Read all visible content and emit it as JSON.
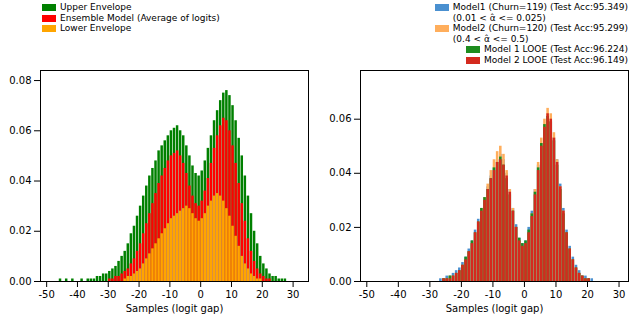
{
  "chart_data": [
    {
      "type": "histogram",
      "x_label": "Samples (logit gap)",
      "legend": "upper left",
      "xlim": [
        -52,
        35
      ],
      "ylim": [
        0,
        0.084
      ],
      "xticks": [
        -50,
        -40,
        -30,
        -20,
        -10,
        0,
        10,
        20,
        30
      ],
      "yticks": [
        {
          "value": 0,
          "label": "0.00"
        },
        {
          "value": 0.02,
          "label": "0.02"
        },
        {
          "value": 0.04,
          "label": "0.04"
        },
        {
          "value": 0.06,
          "label": "0.06"
        },
        {
          "value": 0.08,
          "label": "0.08"
        }
      ],
      "bins": [
        -46,
        -45,
        -44,
        -43,
        -42,
        -41,
        -40,
        -39,
        -38,
        -37,
        -36,
        -35,
        -34,
        -33,
        -32,
        -31,
        -30,
        -29,
        -28,
        -27,
        -26,
        -25,
        -24,
        -23,
        -22,
        -21,
        -20,
        -19,
        -18,
        -17,
        -16,
        -15,
        -14,
        -13,
        -12,
        -11,
        -10,
        -9,
        -8,
        -7,
        -6,
        -5,
        -4,
        -3,
        -2,
        -1,
        0,
        1,
        2,
        3,
        4,
        5,
        6,
        7,
        8,
        9,
        10,
        11,
        12,
        13,
        14,
        15,
        16,
        17,
        18,
        19,
        20,
        21,
        22,
        23,
        24,
        25,
        26,
        27,
        28,
        29,
        30
      ],
      "series": [
        {
          "name": "Upper Envelope",
          "color": "#008000",
          "values": [
            0.001,
            0,
            0.001,
            0,
            0.001,
            0,
            0,
            0.001,
            0,
            0.001,
            0.001,
            0.001,
            0.002,
            0.002,
            0.003,
            0.003,
            0.004,
            0.005,
            0.006,
            0.008,
            0.01,
            0.012,
            0.015,
            0.019,
            0.022,
            0.026,
            0.03,
            0.034,
            0.038,
            0.042,
            0.045,
            0.048,
            0.052,
            0.054,
            0.056,
            0.058,
            0.06,
            0.061,
            0.062,
            0.06,
            0.058,
            0.054,
            0.05,
            0.046,
            0.043,
            0.042,
            0.044,
            0.048,
            0.053,
            0.058,
            0.064,
            0.068,
            0.072,
            0.075,
            0.076,
            0.074,
            0.07,
            0.064,
            0.057,
            0.05,
            0.042,
            0.034,
            0.027,
            0.02,
            0.015,
            0.01,
            0.007,
            0.005,
            0.003,
            0.002,
            0.002,
            0.001,
            0.001,
            0.001,
            0,
            0
          ]
        },
        {
          "name": "Ensemble Model (Average of logits)",
          "color": "#ff0000",
          "values": [
            0,
            0,
            0,
            0,
            0,
            0,
            0,
            0,
            0,
            0,
            0,
            0,
            0,
            0,
            0,
            0,
            0.001,
            0.001,
            0.002,
            0.002,
            0.003,
            0.004,
            0.005,
            0.007,
            0.009,
            0.012,
            0.015,
            0.019,
            0.023,
            0.027,
            0.031,
            0.035,
            0.039,
            0.042,
            0.045,
            0.048,
            0.05,
            0.051,
            0.052,
            0.05,
            0.047,
            0.043,
            0.038,
            0.034,
            0.031,
            0.03,
            0.032,
            0.036,
            0.041,
            0.047,
            0.053,
            0.058,
            0.062,
            0.065,
            0.064,
            0.06,
            0.054,
            0.047,
            0.039,
            0.031,
            0.024,
            0.017,
            0.012,
            0.008,
            0.005,
            0.003,
            0.002,
            0.001,
            0.001,
            0,
            0,
            0,
            0,
            0,
            0,
            0
          ]
        },
        {
          "name": "Lower Envelope",
          "color": "#ffa500",
          "values": [
            0,
            0,
            0,
            0,
            0,
            0,
            0,
            0,
            0,
            0,
            0,
            0,
            0,
            0,
            0,
            0,
            0,
            0,
            0,
            0,
            0,
            0.001,
            0.002,
            0.002,
            0.003,
            0.004,
            0.005,
            0.007,
            0.009,
            0.011,
            0.013,
            0.015,
            0.017,
            0.019,
            0.021,
            0.023,
            0.025,
            0.026,
            0.027,
            0.028,
            0.029,
            0.03,
            0.029,
            0.027,
            0.025,
            0.024,
            0.025,
            0.027,
            0.03,
            0.032,
            0.034,
            0.035,
            0.034,
            0.032,
            0.029,
            0.026,
            0.022,
            0.018,
            0.014,
            0.01,
            0.007,
            0.005,
            0.003,
            0.002,
            0.001,
            0.001,
            0,
            0,
            0,
            0,
            0,
            0,
            0,
            0,
            0,
            0
          ]
        }
      ]
    },
    {
      "type": "histogram",
      "x_label": "Samples (logit gap)",
      "legend": "upper right",
      "xlim": [
        -52,
        33
      ],
      "ylim": [
        0,
        0.078
      ],
      "xticks": [
        -50,
        -40,
        -30,
        -20,
        -10,
        0,
        10,
        20,
        30
      ],
      "yticks": [
        {
          "value": 0,
          "label": "0.00"
        },
        {
          "value": 0.02,
          "label": "0.02"
        },
        {
          "value": 0.04,
          "label": "0.04"
        },
        {
          "value": 0.06,
          "label": "0.06"
        }
      ],
      "bins": [
        -30,
        -29,
        -28,
        -27,
        -26,
        -25,
        -24,
        -23,
        -22,
        -21,
        -20,
        -19,
        -18,
        -17,
        -16,
        -15,
        -14,
        -13,
        -12,
        -11,
        -10,
        -9,
        -8,
        -7,
        -6,
        -5,
        -4,
        -3,
        -2,
        -1,
        0,
        1,
        2,
        3,
        4,
        5,
        6,
        7,
        8,
        9,
        10,
        11,
        12,
        13,
        14,
        15,
        16,
        17,
        18,
        19,
        20,
        21,
        22,
        23,
        24,
        25
      ],
      "series": [
        {
          "name": "Model1 (Churn=119) (Test Acc:95.349)\n(0.01 < α̂ <= 0.025)",
          "color": "#4a90d0",
          "values": [
            0,
            0,
            0,
            0.001,
            0.001,
            0.002,
            0.002,
            0.003,
            0.004,
            0.005,
            0.007,
            0.009,
            0.012,
            0.015,
            0.019,
            0.023,
            0.027,
            0.031,
            0.035,
            0.039,
            0.042,
            0.045,
            0.047,
            0.045,
            0.04,
            0.034,
            0.027,
            0.021,
            0.016,
            0.014,
            0.015,
            0.02,
            0.026,
            0.034,
            0.043,
            0.051,
            0.058,
            0.061,
            0.059,
            0.053,
            0.045,
            0.036,
            0.027,
            0.019,
            0.013,
            0.009,
            0.006,
            0.004,
            0.002,
            0.002,
            0.001,
            0.001,
            0,
            0,
            0
          ]
        },
        {
          "name": "Model2 (Churn=120) (Test Acc:95.299)\n(0.4 < α̂ <= 0.5)",
          "color": "#ffae5c",
          "values": [
            0,
            0,
            0,
            0,
            0.001,
            0.001,
            0.002,
            0.002,
            0.003,
            0.004,
            0.006,
            0.008,
            0.011,
            0.014,
            0.018,
            0.022,
            0.027,
            0.031,
            0.036,
            0.041,
            0.045,
            0.048,
            0.05,
            0.047,
            0.041,
            0.034,
            0.027,
            0.02,
            0.015,
            0.013,
            0.014,
            0.018,
            0.025,
            0.034,
            0.044,
            0.053,
            0.06,
            0.064,
            0.062,
            0.055,
            0.045,
            0.035,
            0.026,
            0.018,
            0.012,
            0.008,
            0.005,
            0.003,
            0.002,
            0.001,
            0.001,
            0,
            0,
            0,
            0
          ]
        },
        {
          "name": "Model 1 LOOE (Test Acc:96.224)",
          "color": "#1e8c1e",
          "values": [
            0,
            0,
            0,
            0,
            0.001,
            0.001,
            0.002,
            0.002,
            0.003,
            0.004,
            0.006,
            0.009,
            0.011,
            0.015,
            0.018,
            0.022,
            0.027,
            0.031,
            0.034,
            0.038,
            0.042,
            0.044,
            0.046,
            0.043,
            0.038,
            0.032,
            0.026,
            0.02,
            0.016,
            0.014,
            0.015,
            0.019,
            0.025,
            0.033,
            0.042,
            0.051,
            0.058,
            0.061,
            0.059,
            0.052,
            0.043,
            0.034,
            0.025,
            0.018,
            0.012,
            0.008,
            0.005,
            0.003,
            0.002,
            0.001,
            0.001,
            0,
            0,
            0,
            0
          ]
        },
        {
          "name": "Model 2 LOOE (Test Acc:96.149)",
          "color": "#d42a1e",
          "values": [
            0,
            0,
            0,
            0,
            0.001,
            0.001,
            0.001,
            0.002,
            0.003,
            0.004,
            0.006,
            0.008,
            0.011,
            0.014,
            0.018,
            0.022,
            0.026,
            0.03,
            0.034,
            0.038,
            0.041,
            0.044,
            0.045,
            0.043,
            0.039,
            0.033,
            0.026,
            0.02,
            0.015,
            0.013,
            0.014,
            0.018,
            0.024,
            0.032,
            0.041,
            0.05,
            0.057,
            0.062,
            0.06,
            0.053,
            0.044,
            0.035,
            0.026,
            0.018,
            0.012,
            0.008,
            0.005,
            0.003,
            0.002,
            0.001,
            0.001,
            0,
            0,
            0,
            0
          ]
        }
      ]
    }
  ]
}
